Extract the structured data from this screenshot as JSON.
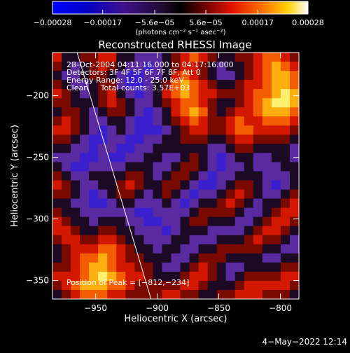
{
  "chart_data": {
    "type": "heatmap",
    "title": "Reconstructed RHESSI Image",
    "xlabel": "Heliocentric X (arcsec)",
    "ylabel": "Heliocentric Y (arcsec)",
    "xlim": [
      -985,
      -785
    ],
    "ylim": [
      -365,
      -165
    ],
    "xticks": [
      -950,
      -900,
      -850,
      -800
    ],
    "yticks": [
      -200,
      -250,
      -300,
      -350
    ],
    "xtick_labels": [
      "−950",
      "−900",
      "−850",
      "−800"
    ],
    "ytick_labels": [
      "−200",
      "−250",
      "−300",
      "−350"
    ],
    "colorbar": {
      "min": -0.00028,
      "max": 0.00028,
      "ticks": [
        -0.00028,
        -0.00017,
        -5.6e-05,
        5.6e-05,
        0.00017,
        0.00028
      ],
      "tick_labels": [
        "−0.00028",
        "−0.00017",
        "−5.6e−05",
        "5.6e−05",
        "0.00017",
        "0.00028"
      ],
      "units_label": "(photons cm⁻² s⁻¹ asec⁻²)",
      "orientation": "horizontal",
      "position": "top"
    },
    "info_lines": [
      "28-Oct-2004 04:11:16.000 to 04:17:16.000",
      "Detectors: 3F 4F 5F 6F 7F 8F, Att 0",
      "Energy Range: 12.0 - 25.0 keV",
      "Clean     Total counts: 3.57E+03"
    ],
    "peak_label": "Position of Peak = [−812,−234]",
    "peak": [
      -812,
      -234
    ],
    "limb_line": [
      [
        -965,
        -165
      ],
      [
        -905,
        -365
      ]
    ],
    "grid": false,
    "z_levels": [
      [
        2,
        0,
        0,
        1,
        1,
        2,
        2,
        0,
        0,
        -1,
        -1,
        -1,
        0,
        1,
        2,
        3,
        2,
        1,
        0,
        0,
        1,
        1,
        2,
        3,
        3,
        2,
        1
      ],
      [
        1,
        0,
        -1,
        0,
        1,
        2,
        1,
        0,
        -1,
        -1,
        -2,
        -1,
        0,
        1,
        2,
        2,
        1,
        0,
        -1,
        0,
        0,
        1,
        2,
        3,
        4,
        3,
        2
      ],
      [
        0,
        -1,
        -1,
        0,
        1,
        1,
        0,
        -1,
        -2,
        -2,
        -1,
        -1,
        0,
        2,
        3,
        2,
        1,
        0,
        -1,
        -1,
        0,
        1,
        2,
        3,
        4,
        4,
        3
      ],
      [
        1,
        0,
        -1,
        -1,
        0,
        1,
        1,
        -1,
        -2,
        -2,
        -1,
        0,
        1,
        3,
        4,
        3,
        2,
        1,
        0,
        0,
        1,
        2,
        2,
        3,
        4,
        4,
        3
      ],
      [
        2,
        1,
        0,
        -1,
        0,
        1,
        2,
        0,
        -1,
        -2,
        -1,
        0,
        2,
        3,
        4,
        3,
        2,
        2,
        1,
        1,
        1,
        2,
        3,
        3,
        4,
        5,
        4
      ],
      [
        1,
        1,
        0,
        0,
        0,
        1,
        2,
        1,
        0,
        -1,
        -1,
        0,
        1,
        2,
        3,
        3,
        2,
        1,
        0,
        0,
        1,
        2,
        3,
        4,
        5,
        5,
        4
      ],
      [
        0,
        1,
        1,
        0,
        -1,
        0,
        1,
        1,
        0,
        -1,
        -2,
        -1,
        0,
        2,
        3,
        4,
        3,
        1,
        0,
        1,
        2,
        2,
        3,
        4,
        4,
        4,
        3
      ],
      [
        1,
        2,
        1,
        0,
        -1,
        -1,
        0,
        0,
        -1,
        -2,
        -2,
        -1,
        0,
        1,
        2,
        3,
        2,
        1,
        1,
        2,
        3,
        2,
        2,
        3,
        3,
        3,
        2
      ],
      [
        2,
        2,
        1,
        0,
        -1,
        -2,
        -1,
        0,
        -1,
        -2,
        -2,
        -2,
        -1,
        0,
        1,
        2,
        2,
        1,
        1,
        2,
        3,
        3,
        2,
        2,
        2,
        2,
        1
      ],
      [
        1,
        1,
        0,
        -1,
        -2,
        -2,
        -1,
        -1,
        -2,
        -2,
        -1,
        -1,
        0,
        0,
        1,
        1,
        1,
        0,
        0,
        1,
        2,
        2,
        1,
        1,
        1,
        1,
        0
      ],
      [
        0,
        0,
        -1,
        -1,
        -2,
        -1,
        -1,
        -2,
        -2,
        -1,
        -1,
        0,
        0,
        0,
        0,
        0,
        0,
        -1,
        -1,
        0,
        1,
        1,
        0,
        0,
        0,
        0,
        -1
      ],
      [
        -1,
        -1,
        -1,
        -2,
        -2,
        -1,
        -2,
        -2,
        -1,
        -1,
        0,
        0,
        -1,
        -1,
        0,
        1,
        0,
        -1,
        -2,
        -1,
        0,
        0,
        -1,
        -1,
        0,
        0,
        -1
      ],
      [
        0,
        -1,
        -2,
        -2,
        -1,
        -1,
        -1,
        -1,
        0,
        0,
        0,
        -1,
        -1,
        0,
        1,
        1,
        0,
        -1,
        -2,
        -1,
        -1,
        0,
        -1,
        -1,
        -1,
        0,
        0
      ],
      [
        1,
        0,
        -1,
        -1,
        0,
        0,
        0,
        0,
        1,
        1,
        0,
        -1,
        0,
        1,
        1,
        0,
        -1,
        -2,
        -1,
        -1,
        0,
        0,
        0,
        -1,
        -1,
        -1,
        0
      ],
      [
        2,
        1,
        0,
        -1,
        -1,
        0,
        0,
        1,
        2,
        1,
        0,
        0,
        1,
        1,
        0,
        -1,
        -2,
        -2,
        -1,
        0,
        1,
        1,
        0,
        -1,
        -2,
        -1,
        0
      ],
      [
        1,
        1,
        0,
        -1,
        -2,
        -1,
        0,
        1,
        1,
        0,
        -1,
        0,
        1,
        0,
        -1,
        -2,
        -1,
        -1,
        0,
        1,
        2,
        1,
        0,
        -1,
        -1,
        0,
        1
      ],
      [
        0,
        0,
        -1,
        -1,
        -2,
        -2,
        -1,
        0,
        0,
        -1,
        -1,
        -1,
        0,
        -1,
        -2,
        -1,
        0,
        0,
        1,
        2,
        1,
        0,
        -1,
        0,
        0,
        1,
        2
      ],
      [
        1,
        0,
        0,
        -1,
        -1,
        -1,
        -1,
        -1,
        -1,
        -2,
        -2,
        -1,
        -1,
        -1,
        -1,
        0,
        1,
        1,
        1,
        1,
        0,
        -1,
        -1,
        0,
        1,
        2,
        2
      ],
      [
        2,
        1,
        0,
        0,
        -1,
        0,
        0,
        0,
        -1,
        -1,
        -2,
        -2,
        -1,
        -1,
        0,
        1,
        1,
        0,
        0,
        0,
        -1,
        -1,
        0,
        1,
        2,
        2,
        1
      ],
      [
        2,
        2,
        1,
        0,
        0,
        1,
        1,
        0,
        0,
        -1,
        -1,
        -1,
        -2,
        -1,
        0,
        0,
        0,
        -1,
        -1,
        -1,
        -1,
        0,
        1,
        2,
        2,
        1,
        0
      ],
      [
        1,
        2,
        2,
        1,
        1,
        2,
        2,
        1,
        0,
        0,
        -1,
        -1,
        -1,
        0,
        0,
        -1,
        -1,
        -1,
        0,
        0,
        0,
        1,
        2,
        1,
        1,
        0,
        -1
      ],
      [
        0,
        1,
        2,
        2,
        2,
        3,
        3,
        2,
        1,
        0,
        0,
        -1,
        0,
        0,
        -1,
        -1,
        0,
        0,
        1,
        1,
        1,
        1,
        1,
        0,
        0,
        -1,
        -1
      ],
      [
        0,
        1,
        2,
        3,
        3,
        4,
        3,
        2,
        1,
        1,
        0,
        0,
        0,
        -1,
        -1,
        0,
        1,
        1,
        1,
        0,
        0,
        0,
        0,
        -1,
        -1,
        0,
        0
      ],
      [
        1,
        1,
        2,
        3,
        4,
        4,
        3,
        2,
        2,
        1,
        1,
        0,
        -1,
        -1,
        0,
        1,
        2,
        1,
        0,
        -1,
        -1,
        0,
        0,
        0,
        0,
        1,
        1
      ],
      [
        2,
        2,
        2,
        3,
        4,
        5,
        4,
        3,
        2,
        2,
        1,
        0,
        0,
        0,
        1,
        2,
        2,
        1,
        0,
        -1,
        0,
        1,
        1,
        1,
        1,
        2,
        2
      ],
      [
        1,
        2,
        3,
        4,
        4,
        4,
        3,
        3,
        2,
        1,
        1,
        1,
        1,
        1,
        2,
        2,
        1,
        0,
        0,
        0,
        1,
        2,
        2,
        2,
        2,
        2,
        1
      ],
      [
        0,
        1,
        2,
        3,
        3,
        3,
        2,
        2,
        1,
        1,
        1,
        1,
        2,
        2,
        1,
        1,
        0,
        0,
        1,
        1,
        2,
        2,
        2,
        1,
        1,
        1,
        0
      ]
    ]
  },
  "timestamp": "4−May−2022 12:14"
}
